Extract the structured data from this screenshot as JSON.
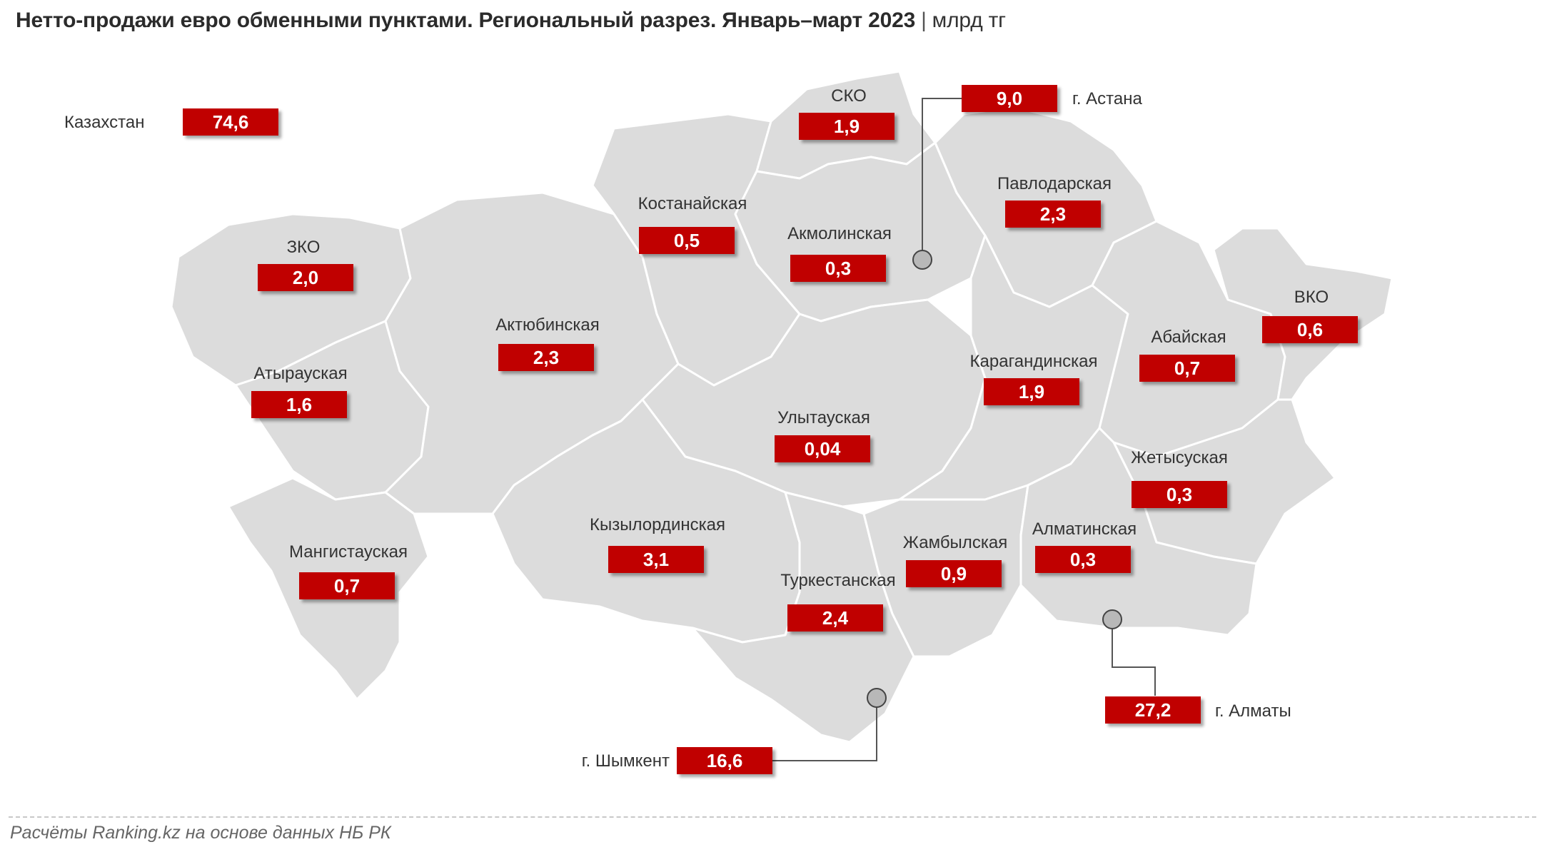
{
  "title": {
    "text": "Нетто-продажи евро обменными пунктами. Региональный разрез. Январь–март 2023",
    "separator": "|",
    "unit": "млрд тг"
  },
  "footer": "Расчёты Ranking.kz на основе данных НБ РК",
  "colors": {
    "value_box": "#c00000",
    "region_fill": "#dcdcdc",
    "region_border": "#ffffff"
  },
  "total": {
    "name": "Казахстан",
    "value": "74,6"
  },
  "regions": {
    "sko": {
      "name": "СКО",
      "value": "1,9"
    },
    "kostanay": {
      "name": "Костанайская",
      "value": "0,5"
    },
    "akmola": {
      "name": "Акмолинская",
      "value": "0,3"
    },
    "pavlodar": {
      "name": "Павлодарская",
      "value": "2,3"
    },
    "zko": {
      "name": "ЗКО",
      "value": "2,0"
    },
    "aktobe": {
      "name": "Актюбинская",
      "value": "2,3"
    },
    "atyrau": {
      "name": "Атырауская",
      "value": "1,6"
    },
    "karaganda": {
      "name": "Карагандинская",
      "value": "1,9"
    },
    "abai": {
      "name": "Абайская",
      "value": "0,7"
    },
    "vko": {
      "name": "ВКО",
      "value": "0,6"
    },
    "ulytau": {
      "name": "Улытауская",
      "value": "0,04"
    },
    "zhetysu": {
      "name": "Жетысуская",
      "value": "0,3"
    },
    "kyzylorda": {
      "name": "Кызылординская",
      "value": "3,1"
    },
    "mangistau": {
      "name": "Мангистауская",
      "value": "0,7"
    },
    "zhambyl": {
      "name": "Жамбылская",
      "value": "0,9"
    },
    "almaty_reg": {
      "name": "Алматинская",
      "value": "0,3"
    },
    "turkestan": {
      "name": "Туркестанская",
      "value": "2,4"
    }
  },
  "cities": {
    "astana": {
      "name": "г. Астана",
      "value": "9,0"
    },
    "almaty": {
      "name": "г. Алматы",
      "value": "27,2"
    },
    "shymkent": {
      "name": "г. Шымкент",
      "value": "16,6"
    }
  }
}
